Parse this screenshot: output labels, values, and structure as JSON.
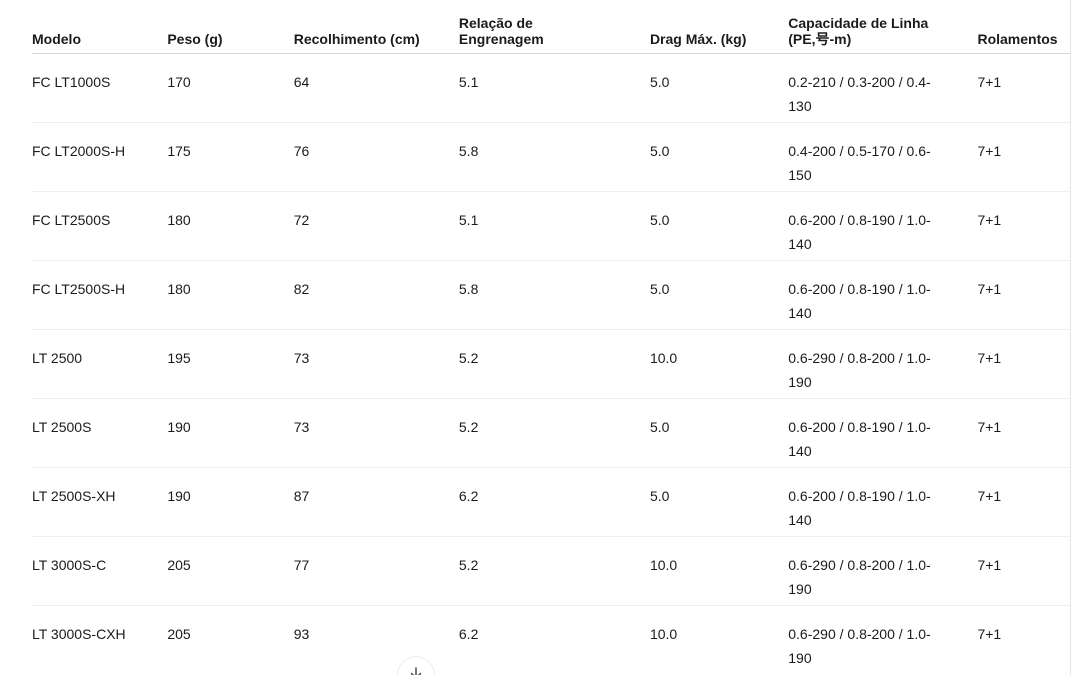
{
  "table": {
    "columns": [
      {
        "key": "modelo",
        "label": "Modelo"
      },
      {
        "key": "peso",
        "label": "Peso (g)"
      },
      {
        "key": "recolhimento",
        "label": "Recolhimento (cm)"
      },
      {
        "key": "relacao",
        "label": "Relação de\nEngrenagem"
      },
      {
        "key": "drag",
        "label": "Drag Máx. (kg)"
      },
      {
        "key": "capacidade",
        "label": "Capacidade de Linha\n(PE,号-m)"
      },
      {
        "key": "rolamentos",
        "label": "Rolamentos"
      }
    ],
    "rows": [
      [
        "FC LT1000S",
        "170",
        "64",
        "5.1",
        "5.0",
        "0.2-210 / 0.3-200 / 0.4-130",
        "7+1"
      ],
      [
        "FC LT2000S-H",
        "175",
        "76",
        "5.8",
        "5.0",
        "0.4-200 / 0.5-170 / 0.6-150",
        "7+1"
      ],
      [
        "FC LT2500S",
        "180",
        "72",
        "5.1",
        "5.0",
        "0.6-200 / 0.8-190 / 1.0-140",
        "7+1"
      ],
      [
        "FC LT2500S-H",
        "180",
        "82",
        "5.8",
        "5.0",
        "0.6-200 / 0.8-190 / 1.0-140",
        "7+1"
      ],
      [
        "LT 2500",
        "195",
        "73",
        "5.2",
        "10.0",
        "0.6-290 / 0.8-200 / 1.0-190",
        "7+1"
      ],
      [
        "LT 2500S",
        "190",
        "73",
        "5.2",
        "5.0",
        "0.6-200 / 0.8-190 / 1.0-140",
        "7+1"
      ],
      [
        "LT 2500S-XH",
        "190",
        "87",
        "6.2",
        "5.0",
        "0.6-200 / 0.8-190 / 1.0-140",
        "7+1"
      ],
      [
        "LT 3000S-C",
        "205",
        "77",
        "5.2",
        "10.0",
        "0.6-290 / 0.8-200 / 1.0-190",
        "7+1"
      ],
      [
        "LT 3000S-CXH",
        "205",
        "93",
        "6.2",
        "10.0",
        "0.6-290 / 0.8-200 / 1.0-190",
        "7+1"
      ]
    ]
  },
  "footer": {
    "load_more_icon": "download-arrow"
  },
  "colors": {
    "text": "#1b1b1b",
    "header_rule": "#d6d6d6",
    "row_rule": "#efefef",
    "right_rule": "#e3e3e3",
    "button_border": "#ececec",
    "icon": "#555555"
  }
}
